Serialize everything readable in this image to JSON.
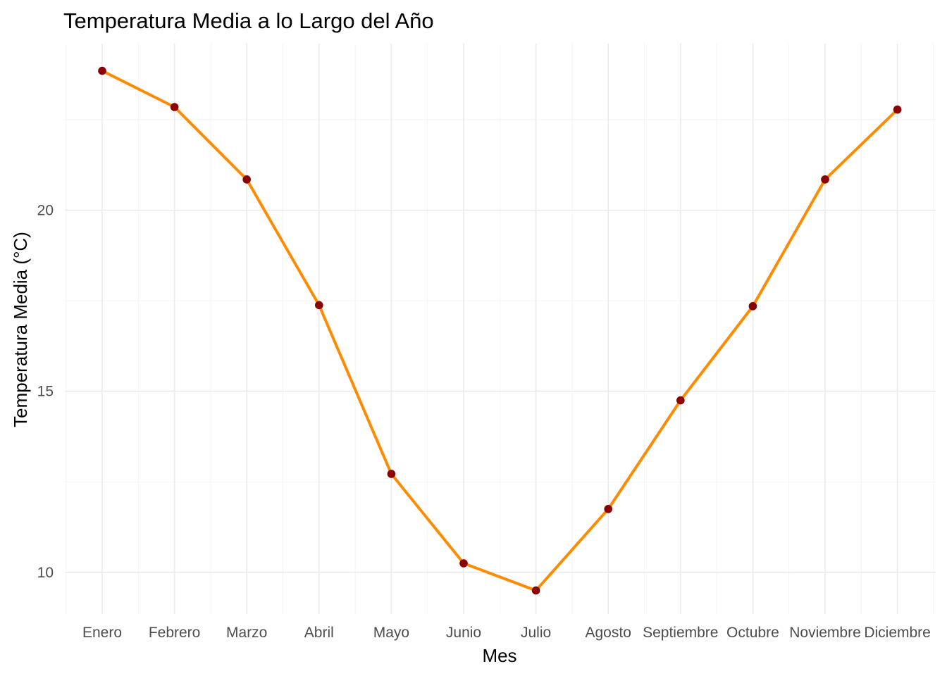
{
  "chart_data": {
    "type": "line",
    "title": "Temperatura Media a lo Largo del Año",
    "xlabel": "Mes",
    "ylabel": "Temperatura Media (°C)",
    "categories": [
      "Enero",
      "Febrero",
      "Marzo",
      "Abril",
      "Mayo",
      "Junio",
      "Julio",
      "Agosto",
      "Septiembre",
      "Octubre",
      "Noviembre",
      "Diciembre"
    ],
    "series": [
      {
        "values": [
          23.85,
          22.85,
          20.85,
          17.38,
          12.72,
          10.25,
          9.5,
          11.75,
          14.75,
          17.35,
          20.85,
          22.78
        ]
      }
    ],
    "ylim": [
      8.85,
      24.6
    ],
    "yticks": [
      10,
      15,
      20
    ],
    "grid": true,
    "line_color": "#ff8c00",
    "point_color": "#8b0000"
  }
}
